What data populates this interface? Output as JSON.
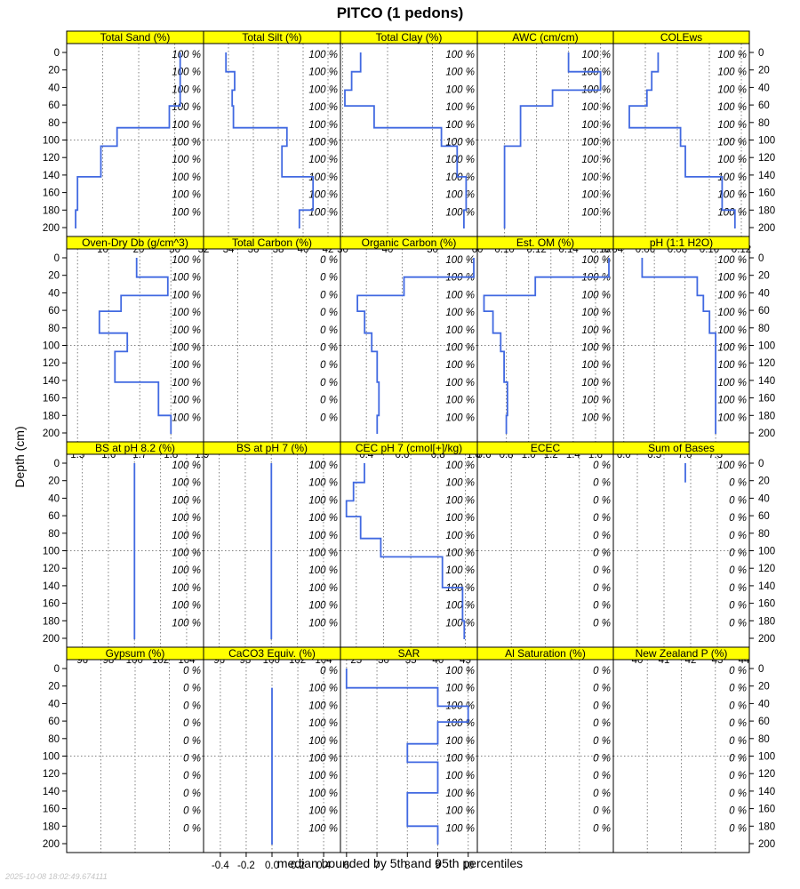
{
  "page": {
    "title": "PITCO (1 pedons)",
    "xlabel": "median bounded by 5th and 95th percentiles",
    "ylabel": "Depth (cm)",
    "timestamp": "2025-10-08 18:02:49.674111"
  },
  "colors": {
    "strip_fill": "#ffff00",
    "line": "#4169e1",
    "grid": "#808080",
    "frame": "#000000"
  },
  "chart_data": {
    "type": "line",
    "layout": "lattice 5x4 step profiles",
    "depth_axis": {
      "range": [
        0,
        200
      ],
      "reversed": true,
      "ticks": [
        0,
        20,
        40,
        60,
        80,
        100,
        120,
        140,
        160,
        180,
        200
      ]
    },
    "horizon_depths": [
      0,
      22,
      43,
      61,
      86,
      107,
      142,
      180,
      201
    ],
    "pct_label_depths": [
      2,
      22,
      42,
      62,
      82,
      102,
      122,
      142,
      162,
      182
    ],
    "grid": true,
    "panels": [
      {
        "name": "Total Sand (%)",
        "xlim": [
          0,
          38
        ],
        "ticks": [
          10,
          20,
          30
        ],
        "gridx": [
          10,
          20,
          30
        ],
        "values": [
          31.5,
          31.5,
          31.5,
          28.5,
          14,
          9.5,
          3,
          2.5
        ],
        "pct": [
          "100 %",
          "100 %",
          "100 %",
          "100 %",
          "100 %",
          "100 %",
          "100 %",
          "100 %",
          "100 %",
          "100 %"
        ]
      },
      {
        "name": "Total Silt (%)",
        "xlim": [
          32,
          43
        ],
        "ticks": [
          32,
          34,
          36,
          38,
          40,
          42
        ],
        "gridx": [
          34,
          36,
          38,
          40,
          42
        ],
        "values": [
          33.8,
          34.5,
          34.3,
          34.4,
          38.7,
          38.3,
          40.8,
          39.7
        ],
        "pct": [
          "100 %",
          "100 %",
          "100 %",
          "100 %",
          "100 %",
          "100 %",
          "100 %",
          "100 %",
          "100 %",
          "100 %"
        ]
      },
      {
        "name": "Total Clay (%)",
        "xlim": [
          29.5,
          60
        ],
        "ticks": [
          30,
          40,
          50,
          60
        ],
        "gridx": [
          30,
          40,
          50
        ],
        "values": [
          34,
          32,
          30.5,
          37,
          52,
          55.5,
          57.5,
          57
        ],
        "pct": [
          "100 %",
          "100 %",
          "100 %",
          "100 %",
          "100 %",
          "100 %",
          "100 %",
          "100 %",
          "100 %",
          "100 %"
        ]
      },
      {
        "name": "AWC (cm/cm)",
        "xlim": [
          0.083,
          0.168
        ],
        "ticks": [
          0.1,
          0.12,
          0.14,
          0.16
        ],
        "tick_labels": [
          "0.10",
          "0.12",
          "0.14",
          "0.16"
        ],
        "gridx": [
          0.1,
          0.12,
          0.14,
          0.16
        ],
        "values": [
          0.14,
          0.16,
          0.13,
          0.11,
          0.11,
          0.1,
          0.1,
          0.1
        ],
        "pct": [
          "100 %",
          "100 %",
          "100 %",
          "100 %",
          "100 %",
          "100 %",
          "100 %",
          "100 %",
          "100 %",
          "100 %"
        ]
      },
      {
        "name": "COLEws",
        "xlim": [
          0.04,
          0.125
        ],
        "ticks": [
          0.04,
          0.06,
          0.08,
          0.1,
          0.12
        ],
        "tick_labels": [
          "0.04",
          "0.06",
          "0.08",
          "0.10",
          "0.12"
        ],
        "gridx": [
          0.06,
          0.08,
          0.1,
          0.12
        ],
        "values": [
          0.068,
          0.064,
          0.061,
          0.05,
          0.082,
          0.085,
          0.108,
          0.116
        ],
        "pct": [
          "100 %",
          "100 %",
          "100 %",
          "100 %",
          "100 %",
          "100 %",
          "100 %",
          "100 %",
          "100 %",
          "100 %"
        ]
      },
      {
        "name": "Oven-Dry Db (g/cm^3)",
        "xlim": [
          1.465,
          1.905
        ],
        "ticks": [
          1.5,
          1.6,
          1.7,
          1.8,
          1.9
        ],
        "tick_labels": [
          "1.5",
          "1.6",
          "1.7",
          "1.8",
          "1.9"
        ],
        "gridx": [
          1.5,
          1.6,
          1.7,
          1.8
        ],
        "values": [
          1.69,
          1.79,
          1.64,
          1.57,
          1.66,
          1.62,
          1.76,
          1.8
        ],
        "pct": [
          "100 %",
          "100 %",
          "100 %",
          "100 %",
          "100 %",
          "100 %",
          "100 %",
          "100 %",
          "100 %",
          "100 %"
        ]
      },
      {
        "name": "Total Carbon (%)",
        "xlim": [
          0,
          1
        ],
        "ticks": [],
        "gridx": [
          0.25,
          0.5,
          0.75
        ],
        "values": [],
        "pct": [
          "0 %",
          "0 %",
          "0 %",
          "0 %",
          "0 %",
          "0 %",
          "0 %",
          "0 %",
          "0 %",
          "0 %"
        ]
      },
      {
        "name": "Organic Carbon (%)",
        "xlim": [
          0.255,
          1.02
        ],
        "ticks": [
          0.4,
          0.6,
          0.8,
          1.0
        ],
        "tick_labels": [
          "0.4",
          "0.6",
          "0.8",
          "1.0"
        ],
        "gridx": [
          0.4,
          0.6,
          0.8
        ],
        "values": [
          1.0,
          0.61,
          0.35,
          0.39,
          0.43,
          0.46,
          0.47,
          0.46
        ],
        "pct": [
          "100 %",
          "100 %",
          "100 %",
          "100 %",
          "100 %",
          "100 %",
          "100 %",
          "100 %",
          "100 %",
          "100 %"
        ]
      },
      {
        "name": "Est. OM (%)",
        "xlim": [
          0.54,
          1.76
        ],
        "ticks": [
          0.6,
          0.8,
          1.0,
          1.2,
          1.4,
          1.6
        ],
        "tick_labels": [
          "0.6",
          "0.8",
          "1.0",
          "1.2",
          "1.4",
          "1.6"
        ],
        "gridx": [
          0.8,
          1.0,
          1.2,
          1.4,
          1.6
        ],
        "values": [
          1.72,
          1.06,
          0.6,
          0.68,
          0.75,
          0.78,
          0.81,
          0.8
        ],
        "pct": [
          "100 %",
          "100 %",
          "100 %",
          "100 %",
          "100 %",
          "100 %",
          "100 %",
          "100 %",
          "100 %",
          "100 %"
        ]
      },
      {
        "name": "pH (1:1 H2O)",
        "xlim": [
          5.83,
          8.05
        ],
        "ticks": [
          6.0,
          6.5,
          7.0,
          7.5
        ],
        "tick_labels": [
          "6.0",
          "6.5",
          "7.0",
          "7.5"
        ],
        "gridx": [
          6.0,
          6.5,
          7.0,
          7.5
        ],
        "values": [
          6.3,
          7.2,
          7.3,
          7.4,
          7.5,
          7.5,
          7.5,
          7.5
        ],
        "pct": [
          "100 %",
          "100 %",
          "100 %",
          "100 %",
          "100 %",
          "100 %",
          "100 %",
          "100 %",
          "100 %",
          "100 %"
        ]
      },
      {
        "name": "BS at pH 8.2 (%)",
        "xlim": [
          94.8,
          105.3
        ],
        "ticks": [
          96,
          98,
          100,
          102,
          104
        ],
        "gridx": [
          96,
          98,
          100,
          102,
          104
        ],
        "values": [
          100,
          100,
          100,
          100,
          100,
          100,
          100,
          100
        ],
        "pct": [
          "100 %",
          "100 %",
          "100 %",
          "100 %",
          "100 %",
          "100 %",
          "100 %",
          "100 %",
          "100 %",
          "100 %"
        ]
      },
      {
        "name": "BS at pH 7 (%)",
        "xlim": [
          94.8,
          105.3
        ],
        "ticks": [
          96,
          98,
          100,
          102,
          104
        ],
        "gridx": [
          96,
          98,
          100,
          102,
          104
        ],
        "values": [
          100,
          100,
          100,
          100,
          100,
          100,
          100,
          100
        ],
        "pct": [
          "100 %",
          "100 %",
          "100 %",
          "100 %",
          "100 %",
          "100 %",
          "100 %",
          "100 %",
          "100 %",
          "100 %"
        ]
      },
      {
        "name": "CEC pH 7 (cmol[+]/kg)",
        "xlim": [
          22.1,
          47.2
        ],
        "ticks": [
          25,
          30,
          35,
          40,
          45
        ],
        "gridx": [
          25,
          30,
          35,
          40,
          45
        ],
        "values": [
          26.5,
          24.5,
          23.2,
          25.8,
          29.5,
          40.8,
          44.5,
          44.8
        ],
        "pct": [
          "100 %",
          "100 %",
          "100 %",
          "100 %",
          "100 %",
          "100 %",
          "100 %",
          "100 %",
          "100 %",
          "100 %"
        ]
      },
      {
        "name": "ECEC",
        "xlim": [
          0,
          1
        ],
        "ticks": [],
        "gridx": [
          0.25,
          0.5,
          0.75
        ],
        "values": [],
        "pct": [
          "0 %",
          "0 %",
          "0 %",
          "0 %",
          "0 %",
          "0 %",
          "0 %",
          "0 %",
          "0 %",
          "0 %"
        ]
      },
      {
        "name": "Sum of Bases",
        "xlim": [
          39.1,
          44.2
        ],
        "ticks": [
          40,
          41,
          42,
          43,
          44
        ],
        "gridx": [
          40,
          41,
          42,
          43
        ],
        "segments": [
          {
            "value": 41.8,
            "top": 0,
            "bottom": 22
          }
        ],
        "values": [],
        "pct": [
          "100 %",
          "0 %",
          "0 %",
          "0 %",
          "0 %",
          "0 %",
          "0 %",
          "0 %",
          "0 %",
          "0 %"
        ]
      },
      {
        "name": "Gypsum (%)",
        "xlim": [
          0,
          1
        ],
        "ticks": [],
        "gridx": [
          0.25,
          0.5,
          0.75
        ],
        "values": [],
        "pct": [
          "0 %",
          "0 %",
          "0 %",
          "0 %",
          "0 %",
          "0 %",
          "0 %",
          "0 %",
          "0 %",
          "0 %"
        ]
      },
      {
        "name": "CaCO3 Equiv. (%)",
        "xlim": [
          -0.53,
          0.53
        ],
        "ticks": [
          -0.4,
          -0.2,
          0.0,
          0.2,
          0.4
        ],
        "tick_labels": [
          "-0.4",
          "-0.2",
          "0.0",
          "0.2",
          "0.4"
        ],
        "gridx": [
          -0.4,
          -0.2,
          0.0,
          0.2,
          0.4
        ],
        "segments": [
          {
            "value": 0.0,
            "top": 22,
            "bottom": 201
          }
        ],
        "values": [],
        "pct": [
          "0 %",
          "100 %",
          "100 %",
          "100 %",
          "100 %",
          "100 %",
          "100 %",
          "100 %",
          "100 %",
          "100 %"
        ]
      },
      {
        "name": "SAR",
        "xlim": [
          5.8,
          10.3
        ],
        "ticks": [
          6,
          7,
          8,
          9,
          10
        ],
        "gridx": [
          6,
          7,
          8,
          9,
          10
        ],
        "values": [
          6,
          9,
          10,
          9,
          8,
          9,
          8,
          9
        ],
        "pct": [
          "100 %",
          "100 %",
          "100 %",
          "100 %",
          "100 %",
          "100 %",
          "100 %",
          "100 %",
          "100 %",
          "100 %"
        ]
      },
      {
        "name": "Al Saturation (%)",
        "xlim": [
          0,
          1
        ],
        "ticks": [],
        "gridx": [
          0.25,
          0.5,
          0.75
        ],
        "values": [],
        "pct": [
          "0 %",
          "0 %",
          "0 %",
          "0 %",
          "0 %",
          "0 %",
          "0 %",
          "0 %",
          "0 %",
          "0 %"
        ]
      },
      {
        "name": "New Zealand P (%)",
        "xlim": [
          0,
          1
        ],
        "ticks": [],
        "gridx": [
          0.25,
          0.5,
          0.75
        ],
        "values": [],
        "pct": [
          "0 %",
          "0 %",
          "0 %",
          "0 %",
          "0 %",
          "0 %",
          "0 %",
          "0 %",
          "0 %",
          "0 %"
        ]
      }
    ]
  }
}
